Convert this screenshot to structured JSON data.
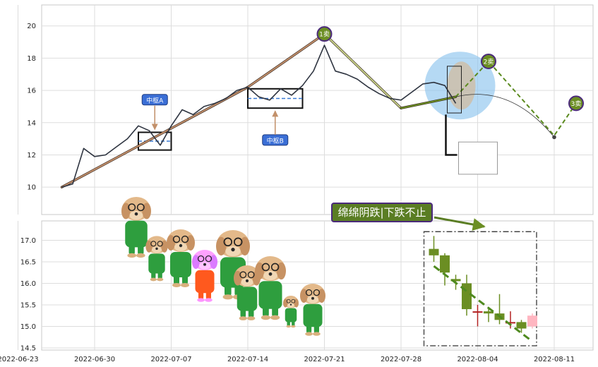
{
  "chart_data": [
    {
      "type": "line",
      "panel": "upper",
      "ylim": [
        8.3,
        21.3
      ],
      "y_ticks": [
        "10",
        "12",
        "14",
        "16",
        "18",
        "20"
      ],
      "price_series": [
        [
          "2022-06-27",
          10.0
        ],
        [
          "2022-06-28",
          10.2
        ],
        [
          "2022-06-29",
          12.4
        ],
        [
          "2022-06-30",
          11.9
        ],
        [
          "2022-07-01",
          12.0
        ],
        [
          "2022-07-02",
          12.5
        ],
        [
          "2022-07-03",
          13.0
        ],
        [
          "2022-07-04",
          13.8
        ],
        [
          "2022-07-05",
          13.5
        ],
        [
          "2022-07-06",
          12.6
        ],
        [
          "2022-07-07",
          13.8
        ],
        [
          "2022-07-08",
          14.8
        ],
        [
          "2022-07-09",
          14.5
        ],
        [
          "2022-07-10",
          15.0
        ],
        [
          "2022-07-11",
          15.2
        ],
        [
          "2022-07-12",
          15.5
        ],
        [
          "2022-07-13",
          16.0
        ],
        [
          "2022-07-14",
          16.2
        ],
        [
          "2022-07-15",
          15.6
        ],
        [
          "2022-07-16",
          15.4
        ],
        [
          "2022-07-17",
          16.1
        ],
        [
          "2022-07-18",
          15.7
        ],
        [
          "2022-07-19",
          16.3
        ],
        [
          "2022-07-20",
          17.2
        ],
        [
          "2022-07-21",
          18.8
        ],
        [
          "2022-07-22",
          17.2
        ],
        [
          "2022-07-23",
          17.0
        ],
        [
          "2022-07-24",
          16.7
        ],
        [
          "2022-07-25",
          16.2
        ],
        [
          "2022-07-26",
          15.8
        ],
        [
          "2022-07-27",
          15.5
        ],
        [
          "2022-07-28",
          15.4
        ],
        [
          "2022-07-29",
          15.9
        ],
        [
          "2022-07-30",
          16.4
        ],
        [
          "2022-07-31",
          16.5
        ],
        [
          "2022-08-01",
          16.3
        ],
        [
          "2022-08-02",
          15.2
        ]
      ],
      "stroke_segments": [
        {
          "from": [
            "2022-06-27",
            10.0
          ],
          "to": [
            "2022-07-14",
            16.2
          ]
        },
        {
          "from": [
            "2022-07-14",
            16.2
          ],
          "to": [
            "2022-07-21",
            19.5
          ]
        },
        {
          "from": [
            "2022-07-21",
            19.5
          ],
          "to": [
            "2022-07-28",
            14.9
          ]
        },
        {
          "from": [
            "2022-07-28",
            14.9
          ],
          "to": [
            "2022-08-02",
            15.6
          ]
        }
      ],
      "pivot_zones": [
        {
          "label": "中枢A",
          "x_start": "2022-07-04",
          "x_end": "2022-07-07",
          "y_low": 12.3,
          "y_high": 13.4,
          "label_y": 15.4
        },
        {
          "label": "中枢B",
          "x_start": "2022-07-14",
          "x_end": "2022-07-19",
          "y_low": 14.9,
          "y_high": 16.1,
          "label_y": 12.9
        }
      ],
      "signals": [
        {
          "label": "1卖",
          "x": "2022-07-21",
          "y": 19.5
        },
        {
          "label": "2卖",
          "x": "2022-08-05",
          "y": 17.8
        },
        {
          "label": "3卖",
          "x": "2022-08-13",
          "y": 15.2
        }
      ],
      "forecast_path": [
        [
          "2022-08-02",
          15.6
        ],
        [
          "2022-08-05",
          17.8
        ],
        [
          "2022-08-11",
          13.2
        ],
        [
          "2022-08-13",
          15.2
        ]
      ],
      "target_point": [
        "2022-08-11",
        13.1
      ],
      "colors": {
        "price": "#2e3440",
        "stroke": "#c28f6b",
        "pivot_frame": "#111111",
        "pivot_mid": "#3b7bd4",
        "signal": "#6b8e23",
        "forecast": "#5a8a1e",
        "label_box": "#3b6fd6",
        "circle_fill": "#8ec5ee"
      }
    },
    {
      "type": "candlestick",
      "panel": "lower",
      "ylim": [
        14.45,
        17.45
      ],
      "y_ticks": [
        "14.5",
        "15.0",
        "15.5",
        "16.0",
        "16.5",
        "17.0"
      ],
      "candles": [
        {
          "x": "2022-07-31",
          "open": 16.8,
          "close": 16.65,
          "high": 17.1,
          "low": 16.5
        },
        {
          "x": "2022-08-01",
          "open": 16.65,
          "close": 16.25,
          "high": 16.7,
          "low": 15.95
        },
        {
          "x": "2022-08-02",
          "open": 16.1,
          "close": 16.05,
          "high": 16.2,
          "low": 15.85
        },
        {
          "x": "2022-08-03",
          "open": 16.0,
          "close": 15.4,
          "high": 16.2,
          "low": 15.25
        },
        {
          "x": "2022-08-04",
          "open": 15.35,
          "close": 15.35,
          "high": 15.5,
          "low": 15.0
        },
        {
          "x": "2022-08-05",
          "open": 15.35,
          "close": 15.3,
          "high": 15.4,
          "low": 15.1
        },
        {
          "x": "2022-08-06",
          "open": 15.3,
          "close": 15.15,
          "high": 15.75,
          "low": 15.05
        },
        {
          "x": "2022-08-07",
          "open": 15.1,
          "close": 15.1,
          "high": 15.35,
          "low": 14.95
        },
        {
          "x": "2022-08-08",
          "open": 15.1,
          "close": 14.95,
          "high": 15.15,
          "low": 14.85
        },
        {
          "x": "2022-08-09",
          "open": 15.25,
          "close": 15.0,
          "high": 15.3,
          "low": 14.95
        }
      ],
      "trend_line": [
        [
          "2022-07-31",
          16.4
        ],
        [
          "2022-08-09",
          14.65
        ]
      ],
      "annotation": "绵绵阴跌|下跌不止",
      "colors": {
        "down": "#6b8e23",
        "up": "#b22222",
        "last": "#ffb6c1",
        "trend": "#4f8a1f",
        "frame": "#444444",
        "annotation_bg": "#5a7d23",
        "annotation_border": "#4b2a7b"
      }
    }
  ],
  "x_axis": {
    "ticks": [
      "2022-06-23",
      "2022-06-30",
      "2022-07-07",
      "2022-07-14",
      "2022-07-21",
      "2022-07-28",
      "2022-08-04",
      "2022-08-11"
    ]
  },
  "decorations": {
    "icon": "cartoon-dog-icon",
    "dog_count": 9
  }
}
